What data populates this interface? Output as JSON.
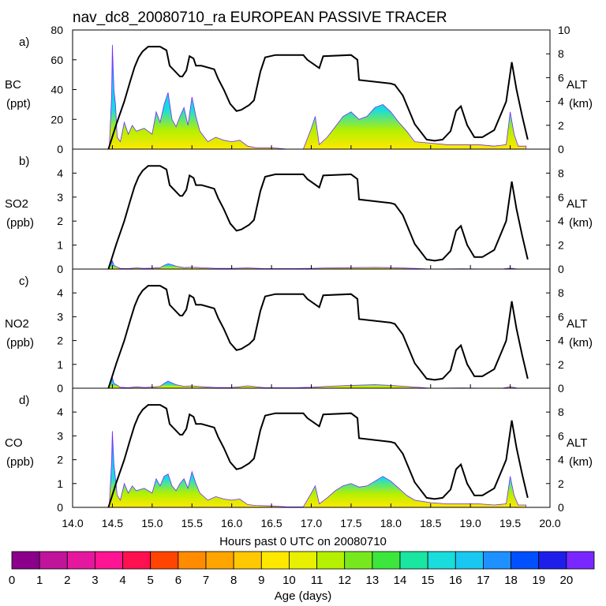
{
  "title": "nav_dc8_20080710_ra EUROPEAN PASSIVE TRACER",
  "x_axis": {
    "label": "Hours past 0 UTC on 20080710",
    "range": [
      14.0,
      20.0
    ],
    "ticks": [
      "14.0",
      "14.5",
      "15.0",
      "15.5",
      "16.0",
      "16.5",
      "17.0",
      "17.5",
      "18.0",
      "18.5",
      "19.0",
      "19.5",
      "20.0"
    ]
  },
  "right_axis": {
    "label_top": "ALT",
    "label_bottom": "(km)",
    "range": [
      0,
      10
    ],
    "panel_a_ticks": [
      "0",
      "2",
      "4",
      "6",
      "8",
      "10"
    ],
    "panel_ticks": [
      "0",
      "2",
      "4",
      "6",
      "8"
    ]
  },
  "colorbar": {
    "label": "Age (days)",
    "ticks": [
      "0",
      "1",
      "2",
      "3",
      "4",
      "5",
      "6",
      "7",
      "8",
      "9",
      "10",
      "11",
      "12",
      "13",
      "14",
      "15",
      "16",
      "17",
      "18",
      "19",
      "20"
    ],
    "colors": [
      "#8B008B",
      "#C0149A",
      "#E6179F",
      "#FF1493",
      "#FF1050",
      "#FF4500",
      "#FF8C00",
      "#FFA500",
      "#FFC800",
      "#FFE800",
      "#E8F000",
      "#B4F000",
      "#78E81E",
      "#3CE63C",
      "#19E6A0",
      "#19DCDC",
      "#19C8F0",
      "#1E90FF",
      "#0050FF",
      "#1E1EEB",
      "#7828FF"
    ]
  },
  "chart_data": [
    {
      "type": "area",
      "panel": "a)",
      "species": "BC",
      "units": "(ppt)",
      "ylim": [
        0,
        80
      ],
      "left_ticks": [
        "0",
        "20",
        "40",
        "60",
        "80"
      ],
      "x": [
        14.46,
        14.49,
        14.5,
        14.52,
        14.54,
        14.56,
        14.6,
        14.65,
        14.7,
        14.75,
        14.8,
        14.9,
        15.0,
        15.05,
        15.1,
        15.15,
        15.2,
        15.25,
        15.3,
        15.35,
        15.4,
        15.45,
        15.5,
        15.55,
        15.6,
        15.7,
        15.8,
        15.9,
        16.0,
        16.1,
        16.2,
        16.3,
        16.5,
        16.7,
        16.9,
        17.0,
        17.05,
        17.1,
        17.2,
        17.3,
        17.4,
        17.5,
        17.6,
        17.7,
        17.8,
        17.9,
        18.0,
        18.1,
        18.2,
        18.3,
        18.5,
        18.7,
        18.9,
        19.1,
        19.3,
        19.45,
        19.5,
        19.55,
        19.6,
        19.7
      ],
      "values": [
        0,
        35,
        70,
        40,
        30,
        8,
        5,
        18,
        10,
        16,
        12,
        14,
        10,
        25,
        18,
        30,
        38,
        20,
        15,
        22,
        28,
        16,
        35,
        22,
        12,
        5,
        8,
        6,
        5,
        6,
        2,
        1,
        1,
        0,
        0,
        14,
        22,
        3,
        8,
        15,
        22,
        25,
        20,
        22,
        28,
        30,
        25,
        18,
        12,
        5,
        4,
        3,
        3,
        3,
        2,
        3,
        25,
        10,
        2,
        2
      ],
      "altitude_km": {
        "x": [
          14.45,
          14.55,
          14.65,
          14.72,
          14.78,
          14.83,
          14.88,
          14.95,
          15.1,
          15.18,
          15.22,
          15.35,
          15.38,
          15.43,
          15.47,
          15.52,
          15.55,
          15.62,
          15.78,
          15.83,
          15.9,
          15.98,
          16.06,
          16.12,
          16.22,
          16.28,
          16.36,
          16.42,
          16.55,
          16.9,
          16.95,
          17.1,
          17.15,
          17.5,
          17.58,
          17.6,
          18.0,
          18.05,
          18.15,
          18.3,
          18.45,
          18.55,
          18.65,
          18.75,
          18.82,
          18.88,
          18.96,
          19.05,
          19.15,
          19.3,
          19.4,
          19.45,
          19.52,
          19.58,
          19.65,
          19.72
        ],
        "values": [
          0,
          2.1,
          4.0,
          5.6,
          6.9,
          7.7,
          8.2,
          8.6,
          8.6,
          8.3,
          7.0,
          6.1,
          6.1,
          6.6,
          7.8,
          7.6,
          7.0,
          7.0,
          6.7,
          5.9,
          5.0,
          3.8,
          3.2,
          3.3,
          3.7,
          4.1,
          6.5,
          7.7,
          7.9,
          7.9,
          7.5,
          6.8,
          7.8,
          7.9,
          7.5,
          5.8,
          5.5,
          5.4,
          4.5,
          2.1,
          0.8,
          0.7,
          0.8,
          1.5,
          3.2,
          3.6,
          2.0,
          1.0,
          1.0,
          1.6,
          3.2,
          4.0,
          7.3,
          5.0,
          2.8,
          0.8
        ]
      }
    },
    {
      "type": "area",
      "panel": "b)",
      "species": "SO2",
      "units": "(ppb)",
      "ylim": [
        0,
        5
      ],
      "left_ticks": [
        "0",
        "1",
        "2",
        "3",
        "4"
      ],
      "x": [
        14.45,
        14.5,
        14.52,
        14.55,
        14.6,
        14.7,
        14.8,
        14.9,
        15.0,
        15.1,
        15.15,
        15.2,
        15.25,
        15.3,
        15.4,
        15.5,
        15.6,
        15.8,
        16.0,
        16.2,
        16.4,
        16.6,
        16.8,
        17.0,
        17.2,
        17.5,
        17.8,
        18.0,
        18.3,
        18.5,
        18.9,
        19.2,
        19.4,
        19.5,
        19.6,
        19.7
      ],
      "values": [
        0,
        0.35,
        0.15,
        0.1,
        0.03,
        0.02,
        0.05,
        0.03,
        0.04,
        0.06,
        0.15,
        0.22,
        0.18,
        0.12,
        0.06,
        0.08,
        0.06,
        0.03,
        0.03,
        0.05,
        0.02,
        0.02,
        0.02,
        0.03,
        0.05,
        0.06,
        0.07,
        0.06,
        0.03,
        0.0,
        0.01,
        0.0,
        0.0,
        0.04,
        0.0,
        0.0
      ]
    },
    {
      "type": "area",
      "panel": "c)",
      "species": "NO2",
      "units": "(ppb)",
      "ylim": [
        0,
        5
      ],
      "left_ticks": [
        "0",
        "1",
        "2",
        "3",
        "4"
      ],
      "x": [
        14.45,
        14.5,
        14.52,
        14.55,
        14.6,
        14.7,
        14.8,
        14.9,
        15.0,
        15.1,
        15.15,
        15.2,
        15.25,
        15.3,
        15.4,
        15.5,
        15.6,
        15.8,
        16.0,
        16.2,
        16.4,
        16.6,
        16.8,
        17.0,
        17.2,
        17.5,
        17.8,
        18.0,
        18.3,
        18.5,
        18.9,
        19.2,
        19.4,
        19.5,
        19.6,
        19.7
      ],
      "values": [
        0,
        0.45,
        0.2,
        0.15,
        0.04,
        0.02,
        0.06,
        0.03,
        0.05,
        0.08,
        0.2,
        0.3,
        0.22,
        0.15,
        0.08,
        0.1,
        0.07,
        0.03,
        0.03,
        0.1,
        0.03,
        0.02,
        0.02,
        0.04,
        0.08,
        0.12,
        0.15,
        0.12,
        0.05,
        0.0,
        0.01,
        0.0,
        0.0,
        0.06,
        0.0,
        0.0
      ]
    },
    {
      "type": "area",
      "panel": "d)",
      "species": "CO",
      "units": "(ppb)",
      "ylim": [
        0,
        5
      ],
      "left_ticks": [
        "0",
        "1",
        "2",
        "3",
        "4"
      ],
      "x": [
        14.46,
        14.49,
        14.5,
        14.52,
        14.54,
        14.56,
        14.6,
        14.65,
        14.7,
        14.75,
        14.8,
        14.9,
        15.0,
        15.05,
        15.1,
        15.15,
        15.2,
        15.25,
        15.3,
        15.35,
        15.4,
        15.45,
        15.5,
        15.55,
        15.6,
        15.7,
        15.8,
        15.9,
        16.0,
        16.1,
        16.2,
        16.3,
        16.5,
        16.7,
        16.9,
        17.0,
        17.05,
        17.1,
        17.2,
        17.3,
        17.4,
        17.5,
        17.6,
        17.7,
        17.8,
        17.9,
        18.0,
        18.1,
        18.2,
        18.3,
        18.5,
        18.7,
        18.9,
        19.1,
        19.3,
        19.45,
        19.5,
        19.55,
        19.6,
        19.7
      ],
      "values": [
        0,
        1.9,
        3.2,
        1.8,
        1.2,
        0.5,
        0.3,
        1.0,
        0.6,
        0.9,
        0.7,
        0.8,
        0.6,
        1.2,
        0.9,
        1.3,
        1.4,
        0.9,
        0.7,
        1.0,
        1.2,
        0.8,
        1.5,
        1.0,
        0.6,
        0.3,
        0.45,
        0.35,
        0.3,
        0.35,
        0.12,
        0.08,
        0.06,
        0.02,
        0.02,
        0.6,
        0.9,
        0.15,
        0.4,
        0.7,
        0.9,
        1.0,
        0.85,
        0.9,
        1.1,
        1.3,
        1.1,
        0.8,
        0.5,
        0.3,
        0.2,
        0.15,
        0.15,
        0.15,
        0.1,
        0.15,
        1.3,
        0.5,
        0.1,
        0.1
      ]
    }
  ]
}
